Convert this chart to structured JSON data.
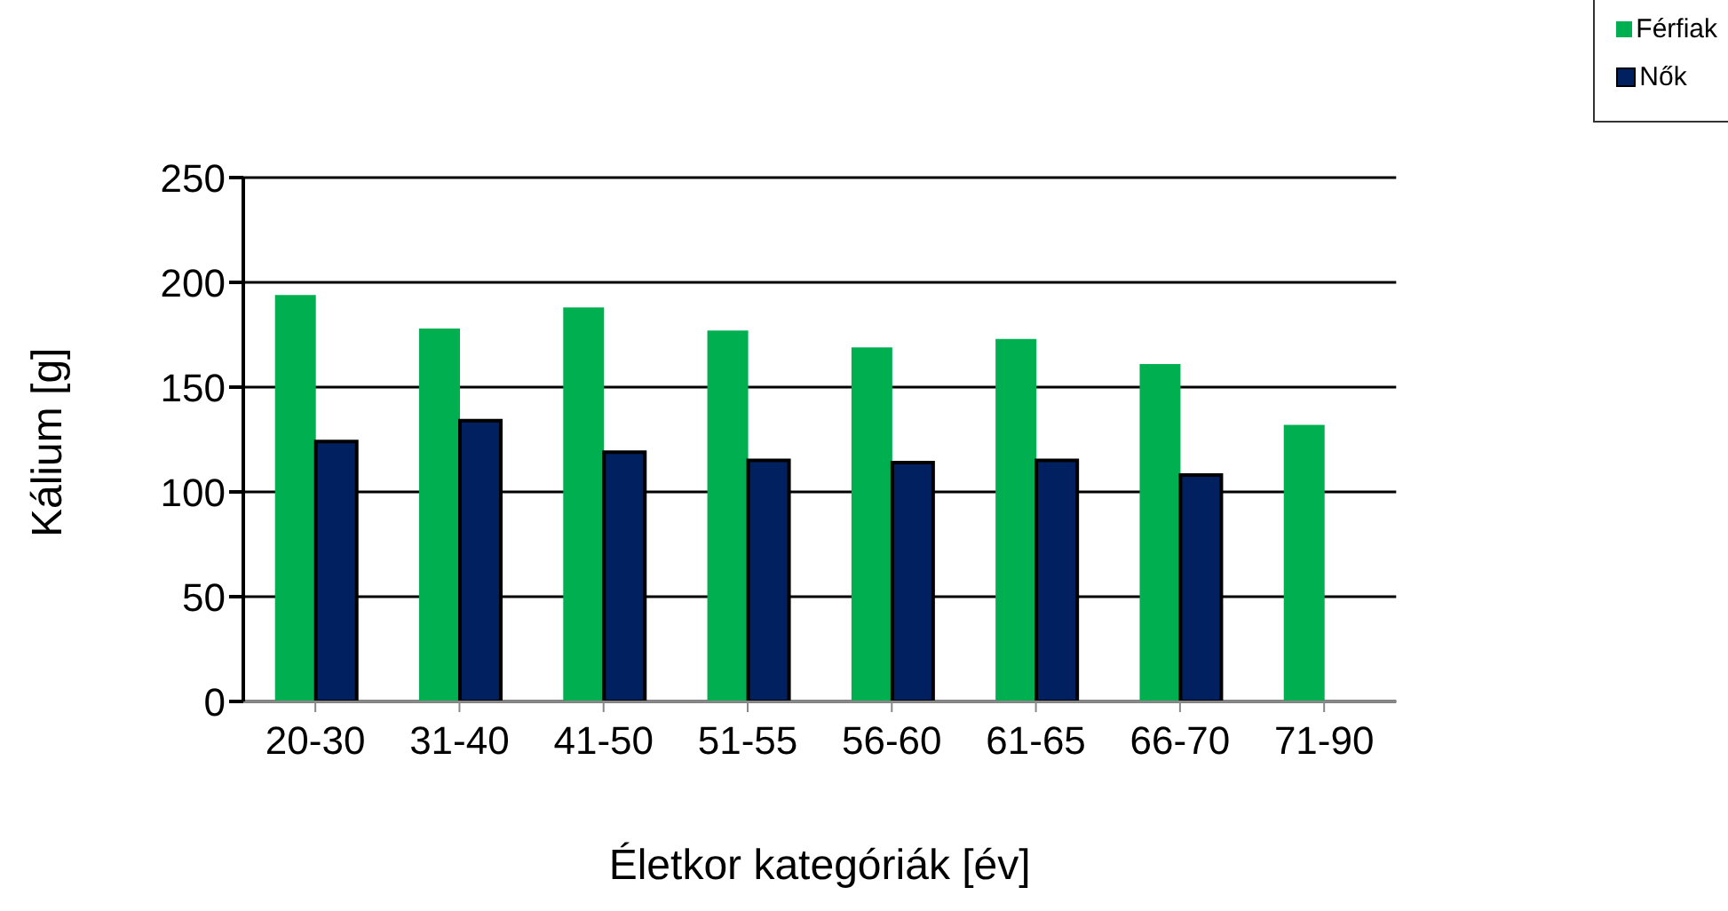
{
  "chart_data": {
    "type": "bar",
    "xlabel": "Életkor kategóriák [év]",
    "ylabel": "Kálium [g]",
    "categories": [
      "20-30",
      "31-40",
      "41-50",
      "51-55",
      "56-60",
      "61-65",
      "66-70",
      "71-90"
    ],
    "series": [
      {
        "name": "Férfiak",
        "color": "#00b050",
        "values": [
          194,
          178,
          188,
          177,
          169,
          173,
          161,
          132
        ]
      },
      {
        "name": "Nők",
        "color": "#002060",
        "values": [
          124,
          134,
          119,
          115,
          114,
          115,
          108,
          null
        ]
      }
    ],
    "ylim": [
      0,
      250
    ],
    "yticks": [
      0,
      50,
      100,
      150,
      200,
      250
    ],
    "grid": "y",
    "legend": "top right"
  }
}
